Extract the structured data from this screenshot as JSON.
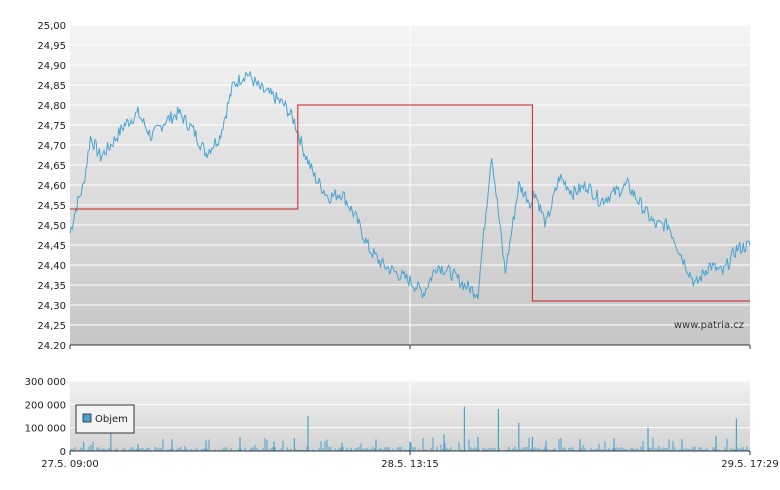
{
  "watermark": "www.patria.cz",
  "colors": {
    "price_line": "#4aa3d0",
    "reference_line": "#cc2222",
    "volume_bars": "#4aa3d0",
    "grid": "#ffffff",
    "plot_background_top": "#f4f4f4",
    "plot_background_bottom": "#c8c8c8",
    "axis": "#333333"
  },
  "chart_data": [
    {
      "type": "line",
      "title": "",
      "xlabel": "",
      "ylabel": "",
      "ylim": [
        24.2,
        25.0
      ],
      "y_ticks": [
        "24.20",
        "24,25",
        "24,30",
        "24,35",
        "24,40",
        "24,45",
        "24,50",
        "24,55",
        "24,60",
        "24,65",
        "24,70",
        "24,75",
        "24,80",
        "24,85",
        "24,90",
        "24,95",
        "25,00"
      ],
      "x_ticks": [
        "27.5. 09:00",
        "28.5. 13:15",
        "29.5. 17:29"
      ],
      "grid": true,
      "series": [
        {
          "kind": "price",
          "x": [
            0,
            0.01,
            0.02,
            0.03,
            0.045,
            0.06,
            0.08,
            0.1,
            0.12,
            0.14,
            0.16,
            0.18,
            0.2,
            0.22,
            0.24,
            0.26,
            0.28,
            0.3,
            0.315,
            0.33,
            0.345,
            0.36,
            0.38,
            0.4,
            0.42,
            0.44,
            0.46,
            0.48,
            0.5,
            0.52,
            0.54,
            0.56,
            0.58,
            0.6,
            0.62,
            0.64,
            0.66,
            0.68,
            0.68,
            0.7,
            0.72,
            0.74,
            0.76,
            0.78,
            0.8,
            0.82,
            0.84,
            0.86,
            0.88,
            0.9,
            0.92,
            0.94,
            0.96,
            0.98,
            1.0
          ],
          "y": [
            24.48,
            24.55,
            24.6,
            24.72,
            24.67,
            24.7,
            24.75,
            24.78,
            24.72,
            24.76,
            24.78,
            24.74,
            24.68,
            24.72,
            24.85,
            24.88,
            24.84,
            24.82,
            24.8,
            24.76,
            24.68,
            24.62,
            24.57,
            24.58,
            24.52,
            24.44,
            24.4,
            24.38,
            24.36,
            24.33,
            24.4,
            24.38,
            24.35,
            24.33,
            24.68,
            24.38,
            24.6,
            24.55,
            24.6,
            24.5,
            24.62,
            24.58,
            24.6,
            24.56,
            24.58,
            24.6,
            24.55,
            24.5,
            24.5,
            24.42,
            24.35,
            24.4,
            24.38,
            24.44,
            24.45
          ]
        },
        {
          "kind": "reference",
          "x": [
            0,
            0.335,
            0.335,
            0.68,
            0.68,
            1.0
          ],
          "y": [
            24.54,
            24.54,
            24.8,
            24.8,
            24.31,
            24.31
          ]
        }
      ]
    },
    {
      "type": "bar",
      "title": "",
      "ylabel": "",
      "ylim": [
        0,
        300000
      ],
      "y_ticks": [
        "0",
        "100 000",
        "200 000",
        "300 000"
      ],
      "x_ticks": [
        "27.5. 09:00",
        "28.5. 13:15",
        "29.5. 17:29"
      ],
      "legend_position": "top-left",
      "series": [
        {
          "name": "Objem",
          "x": [
            0.02,
            0.06,
            0.1,
            0.15,
            0.2,
            0.25,
            0.3,
            0.33,
            0.35,
            0.4,
            0.45,
            0.5,
            0.55,
            0.58,
            0.6,
            0.63,
            0.66,
            0.68,
            0.7,
            0.75,
            0.8,
            0.85,
            0.9,
            0.95,
            0.98
          ],
          "values": [
            40000,
            110000,
            30000,
            50000,
            45000,
            60000,
            40000,
            55000,
            150000,
            35000,
            50000,
            40000,
            70000,
            190000,
            60000,
            180000,
            120000,
            60000,
            45000,
            50000,
            55000,
            100000,
            50000,
            65000,
            140000
          ]
        }
      ]
    }
  ]
}
